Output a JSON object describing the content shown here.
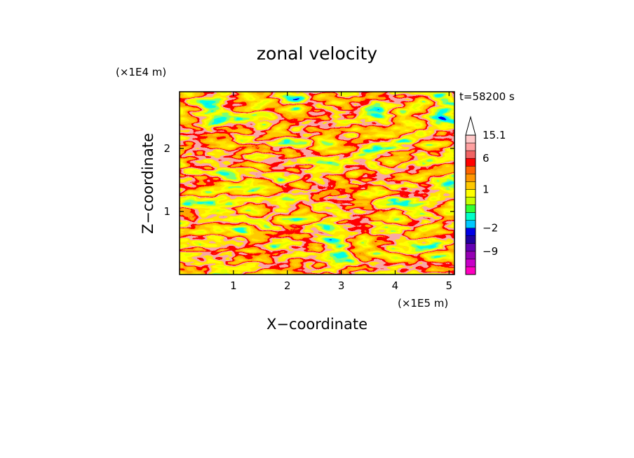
{
  "chart_data": {
    "type": "heatmap",
    "title": "zonal velocity",
    "xlabel": "X−coordinate",
    "ylabel": "Z−coordinate",
    "x_unit": "(×1E5 m)",
    "y_unit": "(×1E4 m)",
    "time_label": "t=58200 s",
    "xlim": [
      0,
      5.1
    ],
    "ylim": [
      0,
      2.9
    ],
    "x_ticks": [
      {
        "value": 1,
        "label": "1"
      },
      {
        "value": 2,
        "label": "2"
      },
      {
        "value": 3,
        "label": "3"
      },
      {
        "value": 4,
        "label": "4"
      },
      {
        "value": 5,
        "label": "5"
      }
    ],
    "y_ticks": [
      {
        "value": 1,
        "label": "1"
      },
      {
        "value": 2,
        "label": "2"
      }
    ],
    "colorbar": {
      "levels": [
        {
          "color": "#ff00c0"
        },
        {
          "color": "#c800c8"
        },
        {
          "color": "#9600b4"
        },
        {
          "color": "#6400b4"
        },
        {
          "color": "#1e00a0"
        },
        {
          "color": "#0000e6",
          "label": "−2"
        },
        {
          "color": "#00c8ff"
        },
        {
          "color": "#00ffc8"
        },
        {
          "color": "#32ff32"
        },
        {
          "color": "#c8ff00"
        },
        {
          "color": "#ffff00",
          "label": "1"
        },
        {
          "color": "#ffc800"
        },
        {
          "color": "#ff9600"
        },
        {
          "color": "#ff6400"
        },
        {
          "color": "#ff0000",
          "label": "6"
        },
        {
          "color": "#f06464"
        },
        {
          "color": "#ffa0a0"
        },
        {
          "color": "#ffc8c8",
          "label": "15.1"
        }
      ],
      "extra_labels": [
        {
          "label": "−9",
          "level_index": 2
        }
      ]
    }
  }
}
